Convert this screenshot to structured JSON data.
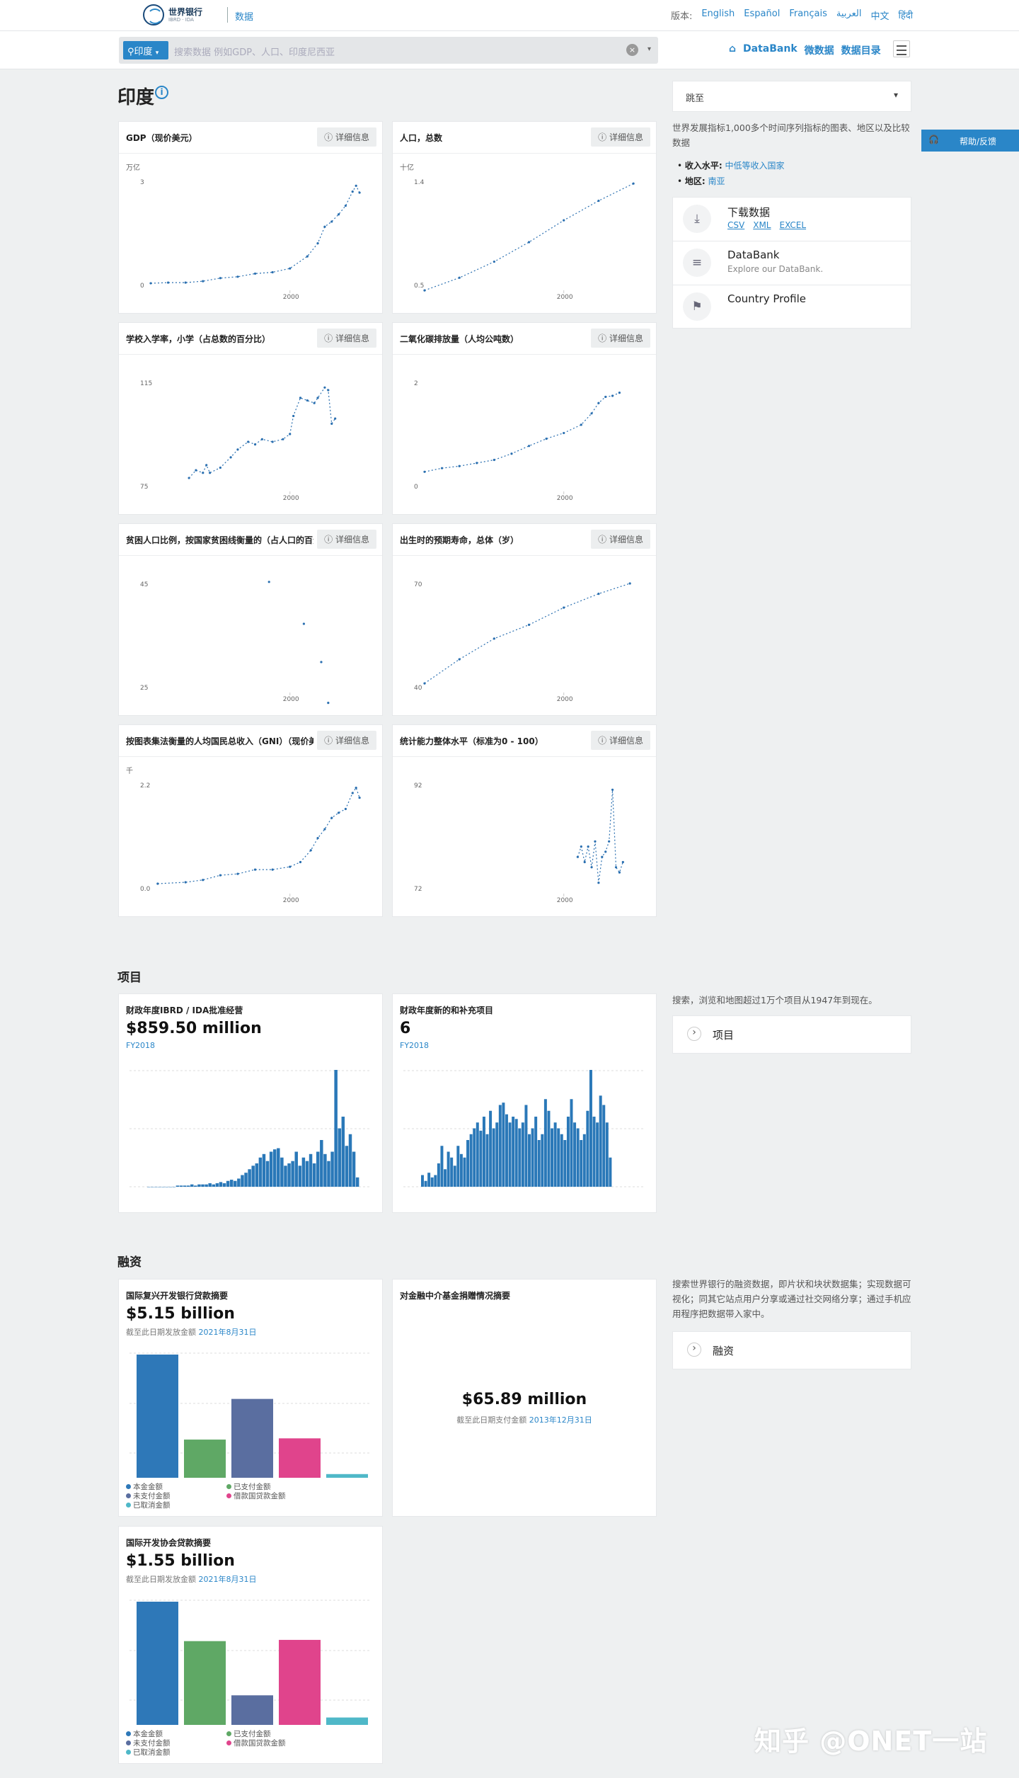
{
  "header": {
    "logo_title": "世界银行",
    "logo_sub": "IBRD · IDA",
    "data_link": "数据",
    "version_label": "版本:",
    "languages": [
      "English",
      "Español",
      "Français",
      "العربية",
      "中文",
      "हिंदी"
    ]
  },
  "search": {
    "chip": "印度",
    "placeholder": "搜索数据 例如GDP、人口、印度尼西亚",
    "nav": [
      "DataBank",
      "微数据",
      "数据目录"
    ]
  },
  "page": {
    "title": "印度",
    "section_projects": "项目",
    "section_finance": "融资",
    "watermark": "知乎 @ONET一站"
  },
  "detail_label": "详细信息",
  "charts": [
    {
      "title": "GDP（现价美元）",
      "unit": "万亿",
      "ytop": "3",
      "ybot": "0",
      "x": "2000",
      "pts": [
        [
          1960,
          0.04
        ],
        [
          1965,
          0.06
        ],
        [
          1970,
          0.06
        ],
        [
          1975,
          0.1
        ],
        [
          1980,
          0.19
        ],
        [
          1985,
          0.23
        ],
        [
          1990,
          0.32
        ],
        [
          1995,
          0.36
        ],
        [
          2000,
          0.47
        ],
        [
          2005,
          0.82
        ],
        [
          2008,
          1.2
        ],
        [
          2010,
          1.68
        ],
        [
          2012,
          1.83
        ],
        [
          2014,
          2.04
        ],
        [
          2016,
          2.29
        ],
        [
          2018,
          2.7
        ],
        [
          2019,
          2.87
        ],
        [
          2020,
          2.67
        ]
      ]
    },
    {
      "title": "人口，总数",
      "unit": "十亿",
      "ytop": "1.4",
      "ybot": "0.5",
      "x": "2000",
      "pts": [
        [
          1960,
          0.45
        ],
        [
          1970,
          0.56
        ],
        [
          1980,
          0.7
        ],
        [
          1990,
          0.87
        ],
        [
          2000,
          1.06
        ],
        [
          2010,
          1.23
        ],
        [
          2020,
          1.38
        ]
      ]
    },
    {
      "title": "学校入学率，小学（占总数的百分比）",
      "unit": "",
      "ytop": "115",
      "ybot": "75",
      "x": "2000",
      "pts": [
        [
          1971,
          78
        ],
        [
          1973,
          81
        ],
        [
          1975,
          80
        ],
        [
          1976,
          83
        ],
        [
          1977,
          80
        ],
        [
          1980,
          82
        ],
        [
          1983,
          86
        ],
        [
          1985,
          89
        ],
        [
          1988,
          92
        ],
        [
          1990,
          91
        ],
        [
          1992,
          93
        ],
        [
          1995,
          92
        ],
        [
          1998,
          93
        ],
        [
          2000,
          95
        ],
        [
          2001,
          102
        ],
        [
          2003,
          109
        ],
        [
          2005,
          108
        ],
        [
          2007,
          107
        ],
        [
          2008,
          109
        ],
        [
          2010,
          113
        ],
        [
          2011,
          112
        ],
        [
          2012,
          99
        ],
        [
          2013,
          101
        ]
      ]
    },
    {
      "title": "二氧化碳排放量（人均公吨数）",
      "unit": "",
      "ytop": "2",
      "ybot": "0",
      "x": "2000",
      "pts": [
        [
          1960,
          0.27
        ],
        [
          1965,
          0.34
        ],
        [
          1970,
          0.38
        ],
        [
          1975,
          0.44
        ],
        [
          1980,
          0.5
        ],
        [
          1985,
          0.62
        ],
        [
          1990,
          0.77
        ],
        [
          1995,
          0.91
        ],
        [
          2000,
          1.02
        ],
        [
          2005,
          1.18
        ],
        [
          2008,
          1.4
        ],
        [
          2010,
          1.6
        ],
        [
          2012,
          1.72
        ],
        [
          2014,
          1.74
        ],
        [
          2016,
          1.8
        ]
      ]
    },
    {
      "title": "贫困人口比例，按国家贫困线衡量的（占人口的百分比）",
      "unit": "",
      "ytop": "45",
      "ybot": "25",
      "x": "2000",
      "pts": [
        [
          1994,
          45.3
        ],
        [
          2004,
          37.2
        ],
        [
          2009,
          29.8
        ],
        [
          2011,
          21.9
        ]
      ],
      "scatter": true
    },
    {
      "title": "出生时的预期寿命，总体（岁）",
      "unit": "",
      "ytop": "70",
      "ybot": "40",
      "x": "2000",
      "pts": [
        [
          1960,
          41
        ],
        [
          1970,
          48
        ],
        [
          1980,
          54
        ],
        [
          1990,
          58
        ],
        [
          2000,
          63
        ],
        [
          2010,
          67
        ],
        [
          2019,
          70
        ]
      ]
    },
    {
      "title": "按图表集法衡量的人均国民总收入（GNI）（现价美元）",
      "unit": "千",
      "ytop": "2.2",
      "ybot": "0.0",
      "x": "2000",
      "pts": [
        [
          1962,
          0.09
        ],
        [
          1970,
          0.12
        ],
        [
          1975,
          0.17
        ],
        [
          1980,
          0.27
        ],
        [
          1985,
          0.3
        ],
        [
          1990,
          0.39
        ],
        [
          1995,
          0.39
        ],
        [
          2000,
          0.45
        ],
        [
          2003,
          0.55
        ],
        [
          2006,
          0.8
        ],
        [
          2008,
          1.06
        ],
        [
          2010,
          1.25
        ],
        [
          2012,
          1.49
        ],
        [
          2014,
          1.6
        ],
        [
          2016,
          1.68
        ],
        [
          2018,
          2.02
        ],
        [
          2019,
          2.13
        ],
        [
          2020,
          1.92
        ]
      ]
    },
    {
      "title": "统计能力整体水平（标准为0 - 100）",
      "unit": "",
      "ytop": "92",
      "ybot": "72",
      "x": "2000",
      "pts": [
        [
          2004,
          78
        ],
        [
          2005,
          80
        ],
        [
          2006,
          77
        ],
        [
          2007,
          80
        ],
        [
          2008,
          76
        ],
        [
          2009,
          81
        ],
        [
          2010,
          73
        ],
        [
          2011,
          78
        ],
        [
          2012,
          79
        ],
        [
          2013,
          81
        ],
        [
          2014,
          91
        ],
        [
          2015,
          76
        ],
        [
          2016,
          75
        ],
        [
          2017,
          77
        ]
      ]
    }
  ],
  "projects": [
    {
      "title": "财政年度IBRD / IDA批准经营",
      "value": "$859.50 million",
      "year": "FY2018",
      "bars": [
        0,
        0,
        0,
        0,
        0,
        0,
        0,
        0,
        0.01,
        0.01,
        0.01,
        0.01,
        0.02,
        0.01,
        0.02,
        0.02,
        0.02,
        0.03,
        0.02,
        0.03,
        0.04,
        0.03,
        0.05,
        0.06,
        0.05,
        0.07,
        0.1,
        0.12,
        0.15,
        0.18,
        0.2,
        0.25,
        0.28,
        0.22,
        0.3,
        0.32,
        0.33,
        0.25,
        0.18,
        0.2,
        0.22,
        0.3,
        0.18,
        0.25,
        0.22,
        0.28,
        0.2,
        0.3,
        0.4,
        0.28,
        0.22,
        0.3,
        1.0,
        0.5,
        0.6,
        0.35,
        0.45,
        0.3,
        0.08
      ]
    },
    {
      "title": "财政年度新的和补充项目",
      "value": "6",
      "year": "FY2018",
      "bars": [
        0.1,
        0.05,
        0.12,
        0.08,
        0.1,
        0.2,
        0.35,
        0.15,
        0.3,
        0.25,
        0.18,
        0.35,
        0.28,
        0.25,
        0.4,
        0.45,
        0.5,
        0.55,
        0.48,
        0.6,
        0.45,
        0.65,
        0.5,
        0.55,
        0.7,
        0.72,
        0.62,
        0.55,
        0.6,
        0.58,
        0.5,
        0.55,
        0.7,
        0.45,
        0.5,
        0.6,
        0.4,
        0.45,
        0.75,
        0.65,
        0.5,
        0.55,
        0.5,
        0.45,
        0.4,
        0.6,
        0.75,
        0.55,
        0.5,
        0.4,
        0.45,
        0.65,
        1.0,
        0.6,
        0.55,
        0.78,
        0.7,
        0.55,
        0.25
      ]
    }
  ],
  "finance": [
    {
      "title": "国际复兴开发银行贷款摘要",
      "value": "$5.15 billion",
      "sub_pre": "截至此日期发放金额",
      "sub_date": "2021年8月31日",
      "bars": [
        {
          "v": 1.0,
          "c": "#2e78b8"
        },
        {
          "v": 0.31,
          "c": "#5fa865"
        },
        {
          "v": 0.64,
          "c": "#5a6ea0"
        },
        {
          "v": 0.32,
          "c": "#e0448c"
        },
        {
          "v": 0.03,
          "c": "#4fb8c8"
        }
      ],
      "legend": [
        "本金金额",
        "已支付金额",
        "未支付金额",
        "借款国贷款金额",
        "已取消金额"
      ]
    },
    {
      "title": "对金融中介基金捐赠情况摘要",
      "value": "$65.89 million",
      "sub_pre": "截至此日期支付金额",
      "sub_date": "2013年12月31日"
    },
    {
      "title": "国际开发协会贷款摘要",
      "value": "$1.55 billion",
      "sub_pre": "截至此日期发放金额",
      "sub_date": "2021年8月31日",
      "bars": [
        {
          "v": 1.0,
          "c": "#2e78b8"
        },
        {
          "v": 0.68,
          "c": "#5fa865"
        },
        {
          "v": 0.24,
          "c": "#5a6ea0"
        },
        {
          "v": 0.69,
          "c": "#e0448c"
        },
        {
          "v": 0.06,
          "c": "#4fb8c8"
        }
      ],
      "legend": [
        "本金金额",
        "已支付金额",
        "未支付金额",
        "借款国贷款金额",
        "已取消金额"
      ]
    }
  ],
  "sidebar": {
    "jump": "跳至",
    "desc": "世界发展指标1,000多个时间序列指标的图表、地区以及比较数据",
    "income_label": "收入水平:",
    "income": "中低等收入国家",
    "region_label": "地区:",
    "region": "南亚",
    "download": "下载数据",
    "formats": [
      "CSV",
      "XML",
      "EXCEL"
    ],
    "databank": "DataBank",
    "databank_sub": "Explore our DataBank.",
    "profile": "Country Profile",
    "help": "帮助/反馈",
    "proj_desc": "搜索，浏览和地图超过1万个项目从1947年到现在。",
    "proj_link": "项目",
    "fin_desc": "搜索世界银行的融资数据，即片状和块状数据集；实现数据可视化；同其它站点用户分享或通过社交网络分享；通过手机应用程序把数据带入家中。",
    "fin_link": "融资"
  }
}
